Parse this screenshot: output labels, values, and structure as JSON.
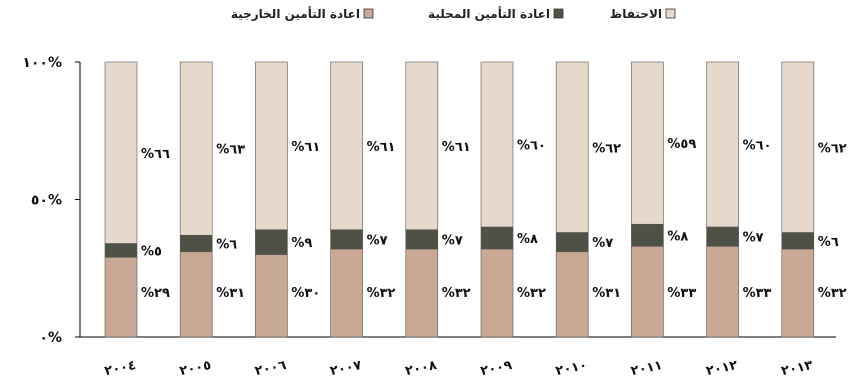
{
  "chart_data": {
    "type": "bar",
    "stacked": true,
    "percent_stacked": true,
    "categories": [
      "٢٠٠٤",
      "٢٠٠٥",
      "٢٠٠٦",
      "٢٠٠٧",
      "٢٠٠٨",
      "٢٠٠٩",
      "٢٠١٠",
      "٢٠١١",
      "٢٠١٢",
      "٢٠١٣"
    ],
    "series": [
      {
        "name": "اعادة التأمين الخارجية",
        "color": "#c9a993",
        "values": [
          29,
          31,
          30,
          32,
          32,
          32,
          31,
          33,
          33,
          32
        ],
        "labels": [
          "%٢٩",
          "%٣١",
          "%٣٠",
          "%٣٢",
          "%٣٢",
          "%٣٢",
          "%٣١",
          "%٣٣",
          "%٣٣",
          "%٣٢"
        ]
      },
      {
        "name": "اعادة التأمين المحلية",
        "color": "#4d5146",
        "values": [
          5,
          6,
          9,
          7,
          7,
          8,
          7,
          8,
          7,
          6
        ],
        "labels": [
          "%٥",
          "%٦",
          "%٩",
          "%٧",
          "%٧",
          "%٨",
          "%٧",
          "%٨",
          "%٧",
          "%٦"
        ]
      },
      {
        "name": "الاحتفاظ",
        "color": "#e6d9cc",
        "values": [
          66,
          63,
          61,
          61,
          61,
          60,
          62,
          59,
          60,
          62
        ],
        "labels": [
          "%٦٦",
          "%٦٣",
          "%٦١",
          "%٦١",
          "%٦١",
          "%٦٠",
          "%٦٢",
          "%٥٩",
          "%٦٠",
          "%٦٢"
        ]
      }
    ],
    "ylim": [
      0,
      100
    ],
    "yticks": [
      0,
      50,
      100
    ],
    "ytick_labels": [
      "٠%",
      "٥٠%",
      "١٠٠%"
    ],
    "legend": "top",
    "grid": false
  }
}
